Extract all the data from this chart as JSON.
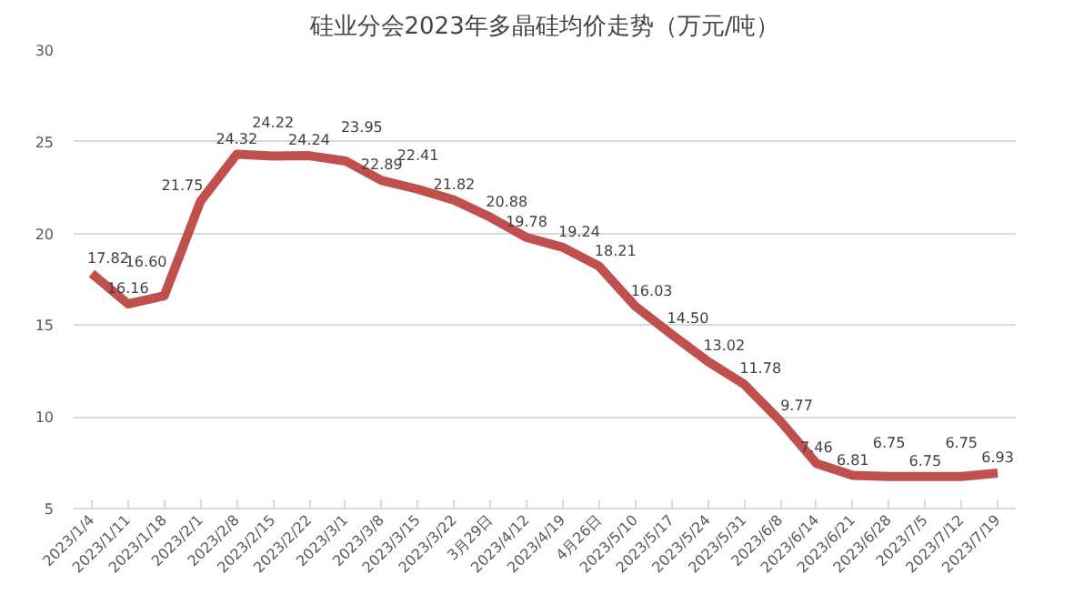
{
  "chart_data": {
    "type": "line",
    "title": "硅业分会2023年多晶硅均价走势（万元/吨）",
    "categories": [
      "2023/1/4",
      "2023/1/11",
      "2023/1/18",
      "2023/2/1",
      "2023/2/8",
      "2023/2/15",
      "2023/2/22",
      "2023/3/1",
      "2023/3/8",
      "2023/3/15",
      "2023/3/22",
      "3月29日",
      "2023/4/12",
      "2023/4/19",
      "4月26日",
      "2023/5/10",
      "2023/5/17",
      "2023/5/24",
      "2023/5/31",
      "2023/6/8",
      "2023/6/14",
      "2023/6/21",
      "2023/6/28",
      "2023/7/5",
      "2023/7/12",
      "2023/7/19"
    ],
    "series": [
      {
        "color": "#c0504d",
        "values": [
          17.82,
          16.16,
          16.6,
          21.75,
          24.32,
          24.22,
          24.24,
          23.95,
          22.89,
          22.41,
          21.82,
          20.88,
          19.78,
          19.24,
          18.21,
          16.03,
          14.5,
          13.02,
          11.78,
          9.77,
          7.46,
          6.81,
          6.75,
          6.75,
          6.75,
          6.93
        ],
        "value_labels": [
          "17.82",
          "16.16",
          "16.60",
          "21.75",
          "24.32",
          "24.22",
          "24.24",
          "23.95",
          "22.89",
          "22.41",
          "21.82",
          "20.88",
          "19.78",
          "19.24",
          "18.21",
          "16.03",
          "14.50",
          "13.02",
          "11.78",
          "9.77",
          "7.46",
          "6.81",
          "6.75",
          "6.75",
          "6.75",
          "6.93"
        ]
      }
    ],
    "ylim": [
      5,
      30
    ],
    "yticks": [
      5,
      10,
      15,
      20,
      25,
      30
    ],
    "grid": "y"
  }
}
